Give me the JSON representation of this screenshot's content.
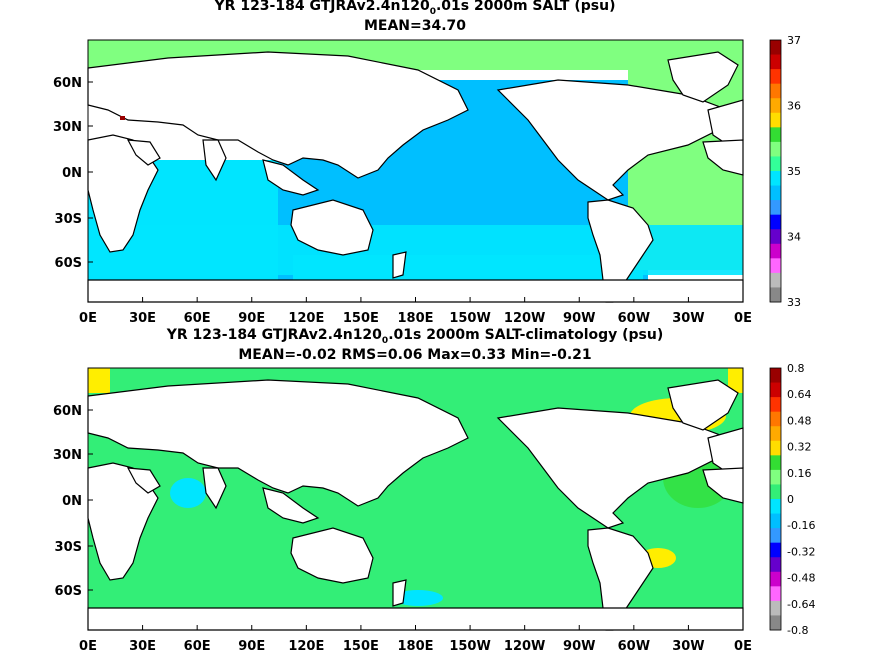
{
  "panels": [
    {
      "title_prefix": "YR 123-184 GTJRAv2.4n120",
      "title_sub": "0",
      "title_suffix": ".01s 2000m SALT (psu)",
      "stats": "MEAN=34.70",
      "colorbar_ticks": [
        "37",
        "36",
        "35",
        "34",
        "33"
      ]
    },
    {
      "title_prefix": "YR 123-184 GTJRAv2.4n120",
      "title_sub": "0",
      "title_suffix": ".01s 2000m SALT-climatology (psu)",
      "stats": "MEAN=-0.02   RMS=0.06   Max=0.33   Min=-0.21",
      "colorbar_ticks": [
        "0.8",
        "0.64",
        "0.48",
        "0.32",
        "0.16",
        "0",
        "-0.16",
        "-0.32",
        "-0.48",
        "-0.64",
        "-0.8"
      ]
    }
  ],
  "x_ticks": [
    "0E",
    "30E",
    "60E",
    "90E",
    "120E",
    "150E",
    "180E",
    "150W",
    "120W",
    "90W",
    "60W",
    "30W",
    "0E"
  ],
  "y_ticks": [
    "60N",
    "30N",
    "0N",
    "30S",
    "60S"
  ],
  "colors": {
    "land": "#ffffff",
    "coast": "#000000",
    "top_pacific": "#00bfff",
    "top_indian": "#00e5ff",
    "top_atlantic": "#80ff80",
    "top_high": "#66ff33",
    "bot_base": "#33ee77",
    "bot_positive": "#ffee00",
    "bot_negative": "#00e5ff",
    "colorbar_top": [
      "#990000",
      "#cc0000",
      "#ff3300",
      "#ff7700",
      "#ffaa00",
      "#ffdd00",
      "#33dd33",
      "#80ff80",
      "#33ff99",
      "#00e5ff",
      "#00bfff",
      "#3399ff",
      "#0000ff",
      "#6600cc",
      "#cc00cc",
      "#ff66ff",
      "#bbbbbb",
      "#888888"
    ],
    "colorbar_bottom": [
      "#990000",
      "#cc0000",
      "#ff3300",
      "#ff7700",
      "#ffaa00",
      "#ffdd00",
      "#33dd33",
      "#80ff80",
      "#33ee77",
      "#00e5ff",
      "#00bfff",
      "#3399ff",
      "#0000ff",
      "#6600cc",
      "#cc00cc",
      "#ff66ff",
      "#bbbbbb",
      "#888888"
    ]
  }
}
